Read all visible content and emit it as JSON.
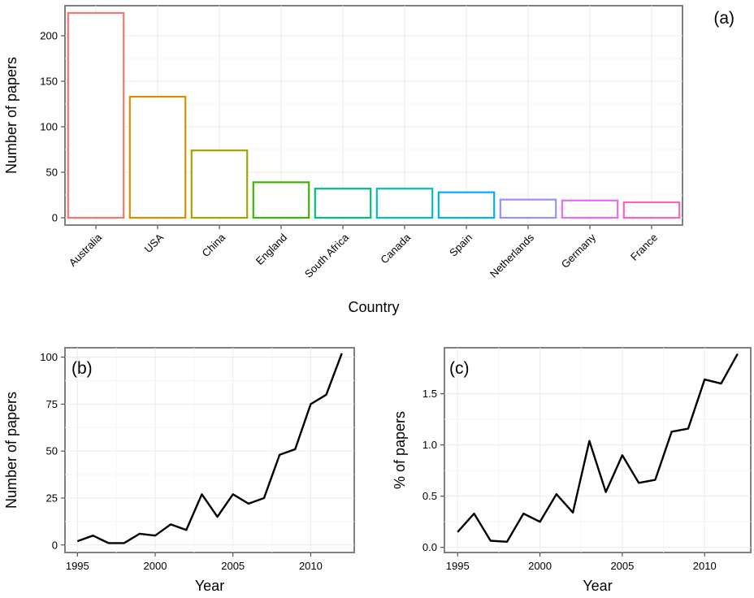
{
  "chart_data": [
    {
      "type": "bar",
      "panel_tag": "(a)",
      "xlabel": "Country",
      "ylabel": "Number of papers",
      "ylim": [
        -8,
        233
      ],
      "yticks": [
        0,
        50,
        100,
        150,
        200
      ],
      "grid": true,
      "categories": [
        "Australia",
        "USA",
        "China",
        "England",
        "South Africa",
        "Canada",
        "Spain",
        "Netherlands",
        "Germany",
        "France"
      ],
      "values": [
        225,
        133,
        74,
        39,
        32,
        32,
        28,
        20,
        19,
        17
      ],
      "colors": [
        "#f8766d",
        "#d89000",
        "#a3a500",
        "#39b600",
        "#00bf7d",
        "#00bfc4",
        "#00b0f6",
        "#9590ff",
        "#e76bf3",
        "#ff62bc"
      ]
    },
    {
      "type": "line",
      "panel_tag": "(b)",
      "xlabel": "Year",
      "ylabel": "Number of papers",
      "xlim": [
        1994.2,
        2012.8
      ],
      "ylim": [
        -4,
        105
      ],
      "xticks": [
        1995,
        2000,
        2005,
        2010
      ],
      "yticks": [
        0,
        25,
        50,
        75,
        100
      ],
      "grid": true,
      "x": [
        1995,
        1996,
        1997,
        1998,
        1999,
        2000,
        2001,
        2002,
        2003,
        2004,
        2005,
        2006,
        2007,
        2008,
        2009,
        2010,
        2011,
        2012
      ],
      "y": [
        2,
        5,
        1,
        1,
        6,
        5,
        11,
        8,
        27,
        15,
        27,
        22,
        25,
        48,
        51,
        75,
        80,
        102
      ]
    },
    {
      "type": "line",
      "panel_tag": "(c)",
      "xlabel": "Year",
      "ylabel": "% of papers",
      "xlim": [
        1994.2,
        2012.8
      ],
      "ylim": [
        -0.05,
        1.95
      ],
      "xticks": [
        1995,
        2000,
        2005,
        2010
      ],
      "yticks": [
        0.0,
        0.5,
        1.0,
        1.5
      ],
      "ytick_labels": [
        "0.0",
        "0.5",
        "1.0",
        "1.5"
      ],
      "grid": true,
      "x": [
        1995,
        1996,
        1997,
        1998,
        1999,
        2000,
        2001,
        2002,
        2003,
        2004,
        2005,
        2006,
        2007,
        2008,
        2009,
        2010,
        2011,
        2012
      ],
      "y": [
        0.15,
        0.33,
        0.065,
        0.055,
        0.33,
        0.25,
        0.52,
        0.34,
        1.04,
        0.54,
        0.9,
        0.63,
        0.66,
        1.13,
        1.16,
        1.64,
        1.6,
        1.89
      ]
    }
  ]
}
